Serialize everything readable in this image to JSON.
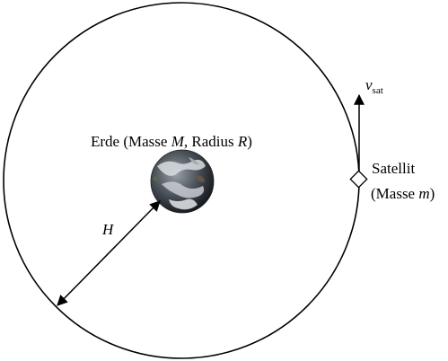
{
  "earth": {
    "label_prefix": "Erde (Masse ",
    "mass_symbol": "M",
    "label_mid": ", Radius ",
    "radius_symbol": "R",
    "label_suffix": ")"
  },
  "distance": {
    "symbol": "H"
  },
  "satellite": {
    "name": "Satellit",
    "mass_prefix": "(Masse ",
    "mass_symbol": "m",
    "mass_suffix": ")"
  },
  "velocity": {
    "symbol": "v",
    "subscript": "sat"
  },
  "colors": {
    "line": "#000000",
    "earth_ocean": "#2b2f36",
    "earth_cloud": "#d9dde2"
  }
}
